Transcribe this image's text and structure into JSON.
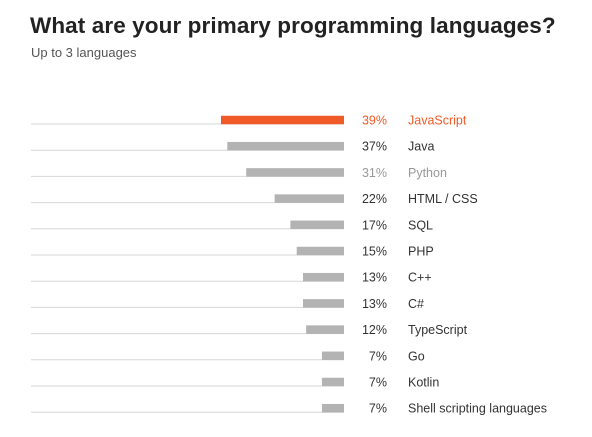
{
  "title": "What are your primary programming languages?",
  "subtitle": "Up to 3 languages",
  "colors": {
    "highlight": "#f05a28",
    "bar": "#b3b3b3",
    "axis_line": "#d6d6d6",
    "text": "#333333",
    "muted_text": "#999999"
  },
  "chart_data": {
    "type": "bar",
    "orientation": "horizontal",
    "value_unit": "%",
    "categories": [
      "JavaScript",
      "Java",
      "Python",
      "HTML / CSS",
      "SQL",
      "PHP",
      "C++",
      "C#",
      "TypeScript",
      "Go",
      "Kotlin",
      "Shell scripting languages"
    ],
    "values": [
      39,
      37,
      31,
      22,
      17,
      15,
      13,
      13,
      12,
      7,
      7,
      7
    ],
    "value_labels": [
      "39%",
      "37%",
      "31%",
      "22%",
      "17%",
      "15%",
      "13%",
      "13%",
      "12%",
      "7%",
      "7%",
      "7%"
    ],
    "highlighted": "JavaScript",
    "muted": [
      "Python"
    ],
    "xlim": [
      0,
      39
    ],
    "grid": false,
    "legend": "none"
  }
}
